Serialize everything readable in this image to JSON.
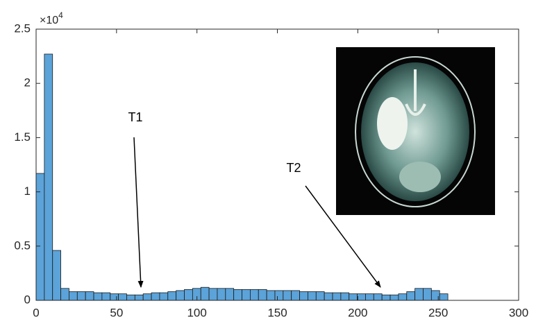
{
  "chart_data": {
    "type": "histogram",
    "bins": [
      0,
      5.12,
      10.24,
      15.36,
      20.48,
      25.6,
      30.72,
      35.84,
      40.96,
      46.08,
      51.2,
      56.32,
      61.44,
      66.56,
      71.68,
      76.8,
      81.92,
      87.04,
      92.16,
      97.28,
      102.4,
      107.52,
      112.64,
      117.76,
      122.88,
      128,
      133.12,
      138.24,
      143.36,
      148.48,
      153.6,
      158.72,
      163.84,
      168.96,
      174.08,
      179.2,
      184.32,
      189.44,
      194.56,
      199.68,
      204.8,
      209.92,
      215.04,
      220.16,
      225.28,
      230.4,
      235.52,
      240.64,
      245.76,
      250.88,
      256
    ],
    "values": [
      1.17,
      2.27,
      0.46,
      0.11,
      0.08,
      0.08,
      0.08,
      0.07,
      0.07,
      0.06,
      0.06,
      0.05,
      0.05,
      0.06,
      0.07,
      0.07,
      0.08,
      0.09,
      0.1,
      0.11,
      0.12,
      0.11,
      0.11,
      0.11,
      0.1,
      0.1,
      0.1,
      0.1,
      0.09,
      0.09,
      0.09,
      0.09,
      0.08,
      0.08,
      0.08,
      0.07,
      0.07,
      0.07,
      0.06,
      0.06,
      0.06,
      0.06,
      0.05,
      0.05,
      0.06,
      0.08,
      0.11,
      0.11,
      0.09,
      0.06
    ],
    "color": "#5ba3d9",
    "xlim": [
      0,
      300
    ],
    "xticks": [
      0,
      50,
      100,
      150,
      200,
      250,
      300
    ],
    "ylim": [
      0,
      2.5
    ],
    "yticks": [
      0,
      0.5,
      1,
      1.5,
      2,
      2.5
    ],
    "y_multiplier": {
      "base": "×10",
      "exponent": "4"
    },
    "annotations": [
      "T1",
      "T2"
    ],
    "grid": false
  }
}
